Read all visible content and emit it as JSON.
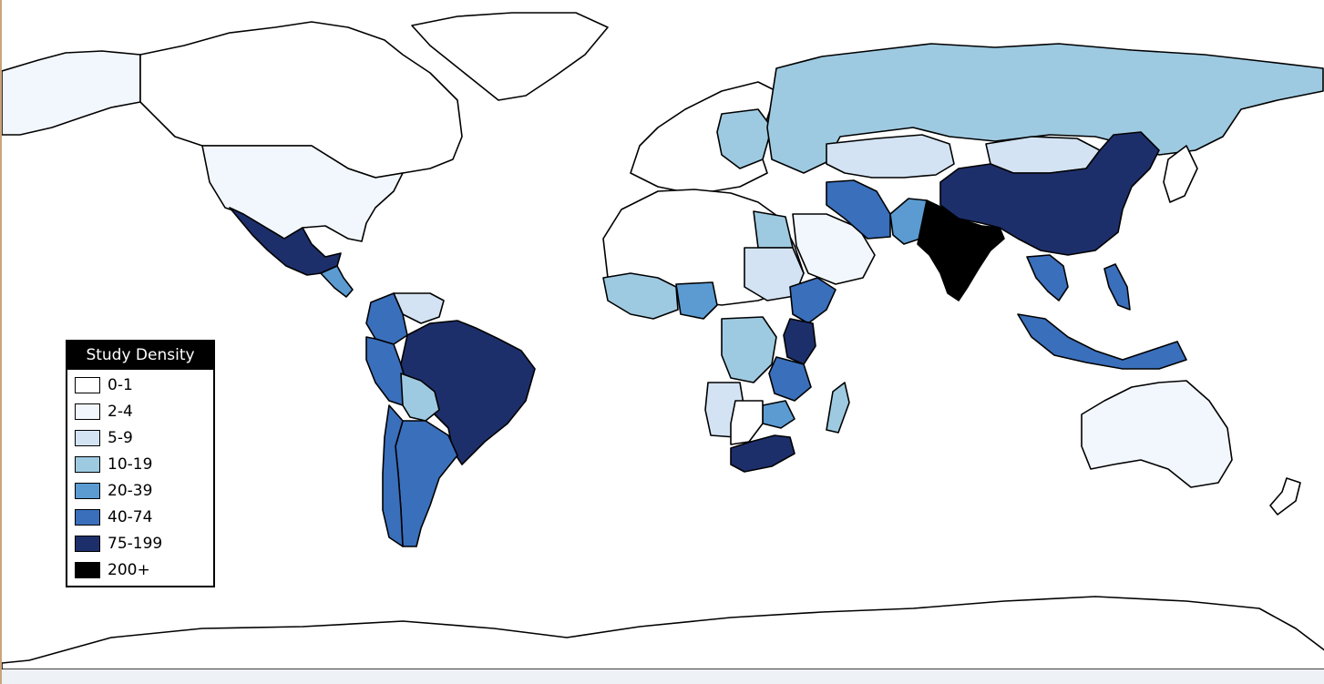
{
  "legend": {
    "title": "Study Density",
    "items": [
      {
        "label": "0-1",
        "color": "#ffffff"
      },
      {
        "label": "2-4",
        "color": "#f2f7fd"
      },
      {
        "label": "5-9",
        "color": "#d3e3f3"
      },
      {
        "label": "10-19",
        "color": "#9ecae1"
      },
      {
        "label": "20-39",
        "color": "#5b9bd1"
      },
      {
        "label": "40-74",
        "color": "#3a6fbc"
      },
      {
        "label": "75-199",
        "color": "#1d2f6b"
      },
      {
        "label": "200+",
        "color": "#000000"
      }
    ]
  },
  "map": {
    "projection": "equirectangular world map",
    "countries": [
      {
        "name": "India",
        "class": "200+"
      },
      {
        "name": "China",
        "class": "75-199"
      },
      {
        "name": "Brazil",
        "class": "75-199"
      },
      {
        "name": "Mexico",
        "class": "75-199"
      },
      {
        "name": "South Africa",
        "class": "75-199"
      },
      {
        "name": "Kenya",
        "class": "75-199"
      },
      {
        "name": "Argentina",
        "class": "40-74"
      },
      {
        "name": "Peru",
        "class": "40-74"
      },
      {
        "name": "Colombia",
        "class": "40-74"
      },
      {
        "name": "Iran",
        "class": "40-74"
      },
      {
        "name": "Ethiopia",
        "class": "40-74"
      },
      {
        "name": "Tanzania",
        "class": "40-74"
      },
      {
        "name": "Indonesia",
        "class": "40-74"
      },
      {
        "name": "Thailand",
        "class": "40-74"
      },
      {
        "name": "Chile",
        "class": "40-74"
      },
      {
        "name": "Nigeria",
        "class": "20-39"
      },
      {
        "name": "Pakistan",
        "class": "20-39"
      },
      {
        "name": "Zimbabwe",
        "class": "20-39"
      },
      {
        "name": "Russia",
        "class": "10-19"
      },
      {
        "name": "Egypt",
        "class": "10-19"
      },
      {
        "name": "Democratic Republic of the Congo",
        "class": "10-19"
      },
      {
        "name": "Bolivia",
        "class": "10-19"
      },
      {
        "name": "Madagascar",
        "class": "10-19"
      },
      {
        "name": "Mongolia",
        "class": "5-9"
      },
      {
        "name": "Kazakhstan",
        "class": "5-9"
      },
      {
        "name": "Sudan",
        "class": "5-9"
      },
      {
        "name": "Angola",
        "class": "5-9"
      },
      {
        "name": "Venezuela",
        "class": "5-9"
      },
      {
        "name": "United States",
        "class": "2-4"
      },
      {
        "name": "Alaska",
        "class": "2-4"
      },
      {
        "name": "Australia",
        "class": "2-4"
      },
      {
        "name": "Saudi Arabia",
        "class": "2-4"
      },
      {
        "name": "Canada",
        "class": "0-1"
      },
      {
        "name": "Greenland",
        "class": "0-1"
      },
      {
        "name": "Antarctica",
        "class": "0-1"
      }
    ]
  }
}
